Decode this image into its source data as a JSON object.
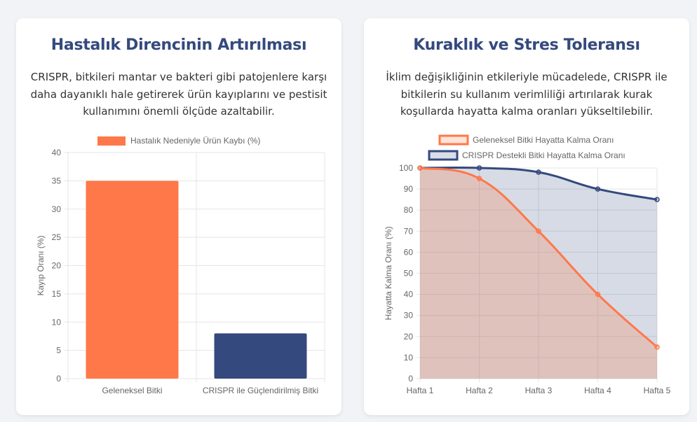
{
  "cards": [
    {
      "title": "Hastalık Direncinin Artırılması",
      "text": "CRISPR, bitkileri mantar ve bakteri gibi patojenlere karşı daha dayanıklı hale getirerek ürün kayıplarını ve pestisit kullanımını önemli ölçüde azaltabilir."
    },
    {
      "title": "Kuraklık ve Stres Toleransı",
      "text": "İklim değişikliğinin etkileriyle mücadelede, CRISPR ile bitkilerin su kullanım verimliliği artırılarak kurak koşullarda hayatta kalma oranları yükseltilebilir."
    }
  ],
  "chart_data": [
    {
      "type": "bar",
      "categories": [
        "Geleneksel Bitki",
        "CRISPR ile Güçlendirilmiş Bitki"
      ],
      "series": [
        {
          "name": "Hastalık Nedeniyle Ürün Kaybı (%)",
          "values": [
            35,
            8
          ]
        }
      ],
      "bar_colors": [
        "#ff7849",
        "#34497d"
      ],
      "ylabel": "Kayıp Oranı (%)",
      "ylim": [
        0,
        40
      ],
      "yticks": [
        0,
        5,
        10,
        15,
        20,
        25,
        30,
        35,
        40
      ],
      "grid": true,
      "legend": "top"
    },
    {
      "type": "line",
      "categories": [
        "Hafta 1",
        "Hafta 2",
        "Hafta 3",
        "Hafta 4",
        "Hafta 5"
      ],
      "series": [
        {
          "name": "Geleneksel Bitki Hayatta Kalma Oranı",
          "values": [
            100,
            95,
            70,
            40,
            15
          ],
          "color": "#ff7849"
        },
        {
          "name": "CRISPR Destekli Bitki Hayatta Kalma Oranı",
          "values": [
            100,
            100,
            98,
            90,
            85
          ],
          "color": "#34497d"
        }
      ],
      "ylabel": "Hayatta Kalma Oranı (%)",
      "ylim": [
        0,
        100
      ],
      "yticks": [
        0,
        10,
        20,
        30,
        40,
        50,
        60,
        70,
        80,
        90,
        100
      ],
      "filled": true,
      "grid": true,
      "legend": "top"
    }
  ]
}
